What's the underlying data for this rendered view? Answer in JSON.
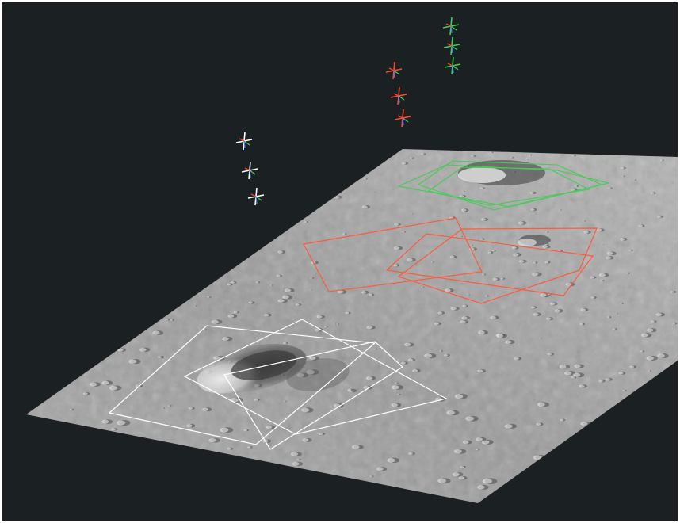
{
  "scene": {
    "background_color": "#1b2022",
    "terrain_color": "#8e8e8e",
    "camera_groups": [
      {
        "color": "#ffffff",
        "footprints": 3,
        "camera_markers": 3
      },
      {
        "color": "#ff4a2a",
        "footprints": 3,
        "camera_markers": 3
      },
      {
        "color": "#3fd04f",
        "footprints": 3,
        "camera_markers": 3
      }
    ]
  }
}
